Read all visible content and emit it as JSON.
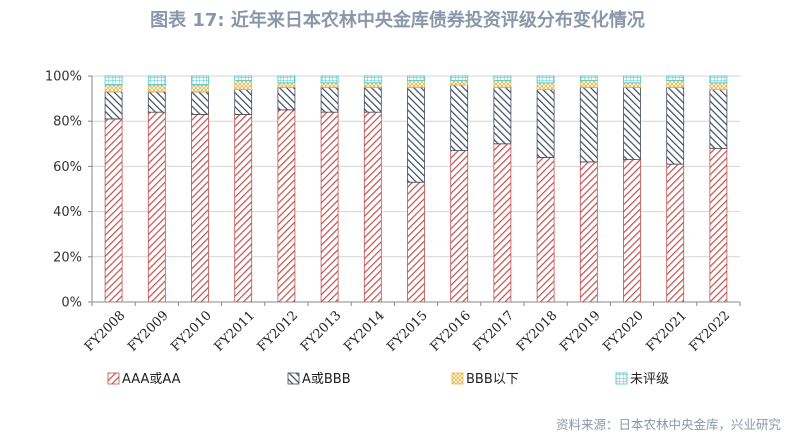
{
  "chart_data": {
    "type": "bar",
    "stacked": true,
    "title": "图表 17: 近年来日本农林中央金库债券投资评级分布变化情况",
    "source": "资料来源：日本农林中央金库，兴业研究",
    "categories": [
      "FY2008",
      "FY2009",
      "FY2010",
      "FY2011",
      "FY2012",
      "FY2013",
      "FY2014",
      "FY2015",
      "FY2016",
      "FY2017",
      "FY2018",
      "FY2019",
      "FY2020",
      "FY2021",
      "FY2022"
    ],
    "y_ticks": [
      "0%",
      "20%",
      "40%",
      "60%",
      "80%",
      "100%"
    ],
    "ylim": [
      0,
      100
    ],
    "grid": true,
    "legend_position": "bottom",
    "series": [
      {
        "name": "AAA或AA",
        "values": [
          81,
          84,
          83,
          83,
          85,
          84,
          84,
          53,
          67,
          70,
          64,
          62,
          63,
          61,
          68
        ],
        "color": "#c0504d",
        "pattern": "diag-right"
      },
      {
        "name": "A或BBB",
        "values": [
          12,
          9,
          10,
          11,
          10,
          11,
          11,
          42,
          29,
          25,
          30,
          33,
          32,
          34,
          26
        ],
        "color": "#3f4a5e",
        "pattern": "diag-left"
      },
      {
        "name": "BBB以下",
        "values": [
          3,
          3,
          3,
          4,
          2,
          2,
          2,
          3,
          2,
          3,
          3,
          3,
          2,
          3,
          3
        ],
        "color": "#e8b84a",
        "pattern": "cross"
      },
      {
        "name": "未评级",
        "values": [
          4,
          4,
          4,
          2,
          3,
          3,
          3,
          2,
          2,
          2,
          3,
          2,
          3,
          2,
          3
        ],
        "color": "#4bc4c8",
        "pattern": "grid"
      }
    ]
  }
}
